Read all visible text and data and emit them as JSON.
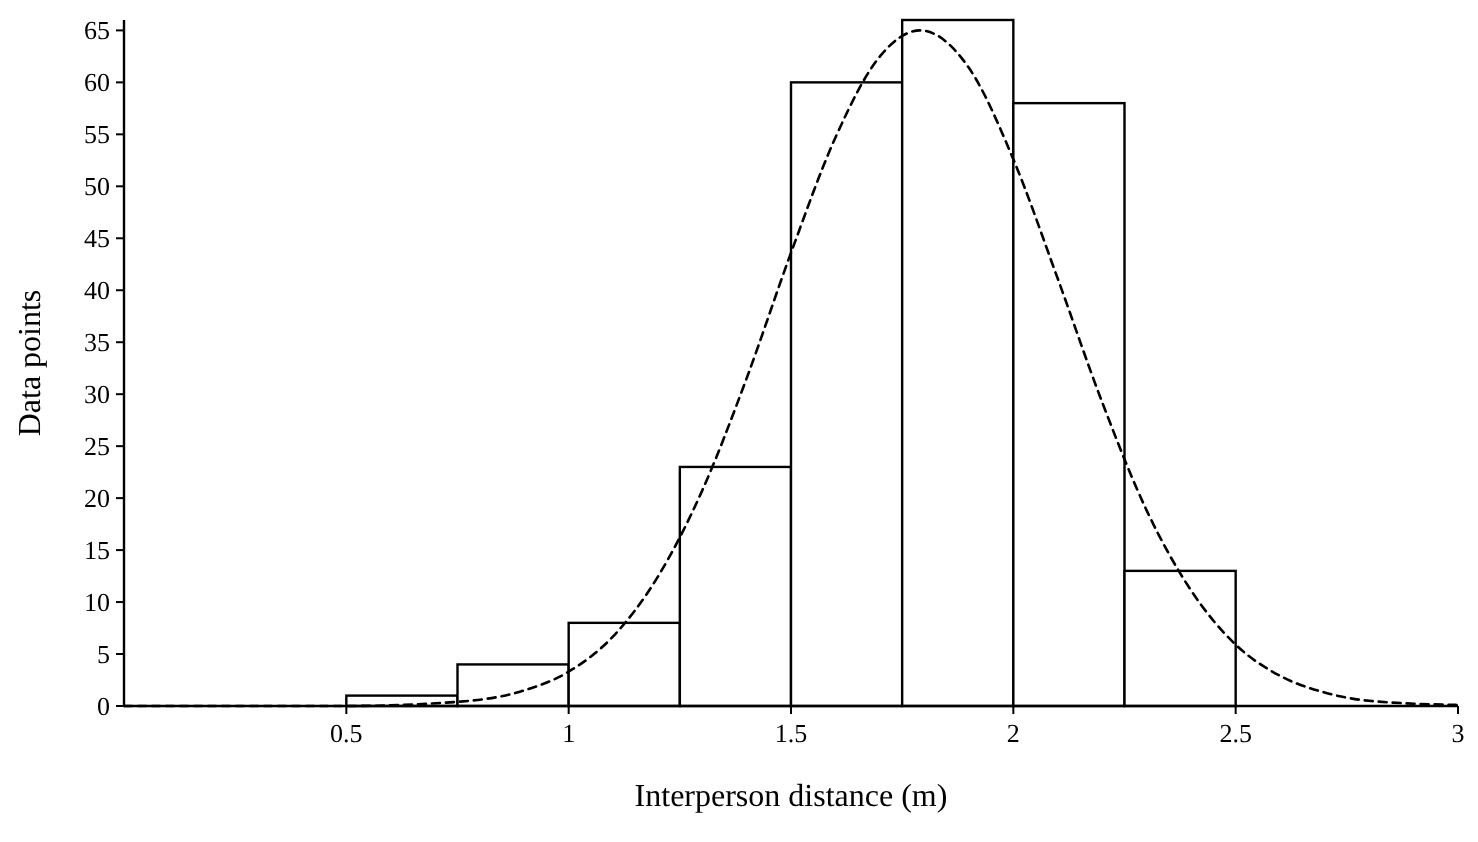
{
  "chart_data": {
    "type": "histogram",
    "xlabel": "Interperson distance (m)",
    "ylabel": "Data points",
    "bins": [
      0.5,
      0.75,
      1,
      1.25,
      1.5,
      1.75,
      2,
      2.25,
      2.5
    ],
    "values": [
      1,
      4,
      8,
      23,
      60,
      66,
      58,
      13
    ],
    "color": "#ffffff",
    "series": [
      {
        "type": "line",
        "color": "#000000",
        "line_style": "dashed",
        "x": [
          0,
          0.5,
          0.75,
          0.9,
          1,
          1.1,
          1.2,
          1.3,
          1.4,
          1.5,
          1.6,
          1.7,
          1.79,
          1.9,
          2,
          2.1,
          2.2,
          2.3,
          2.4,
          2.5,
          2.6,
          2.7,
          2.8,
          3
        ],
        "values": [
          0,
          0,
          0.4,
          1.5,
          3.3,
          6.7,
          12.4,
          20.7,
          31.5,
          43.6,
          54.7,
          62.5,
          65,
          61.4,
          52.6,
          41.1,
          29.2,
          18.8,
          11.1,
          5.9,
          2.9,
          1.3,
          0.5,
          0.1
        ]
      }
    ],
    "xlim": [
      0,
      3
    ],
    "xticks": [
      0.5,
      1,
      1.5,
      2,
      2.5,
      3
    ],
    "ylim": [
      0,
      66
    ],
    "yticks": [
      0,
      5,
      10,
      15,
      20,
      25,
      30,
      35,
      40,
      45,
      50,
      55,
      60,
      65
    ],
    "grid": false
  }
}
